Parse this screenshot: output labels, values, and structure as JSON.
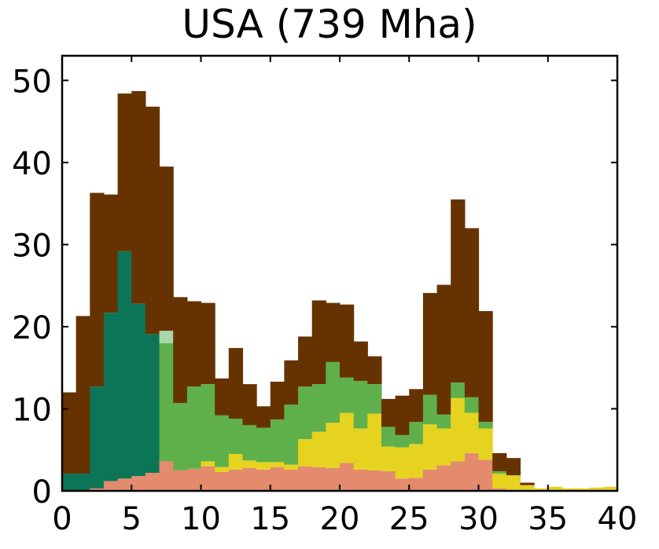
{
  "chart_data": {
    "type": "bar",
    "subtype": "stacked-step-histogram",
    "title": "USA (739 Mha)",
    "xlabel": "",
    "ylabel": "",
    "xlim": [
      0,
      40
    ],
    "ylim": [
      0,
      53
    ],
    "bin_width": 1,
    "x_ticks": [
      0,
      5,
      10,
      15,
      20,
      25,
      30,
      35,
      40
    ],
    "y_ticks": [
      0,
      10,
      20,
      30,
      40,
      50
    ],
    "grid": false,
    "legend": "none",
    "series": [
      {
        "color": "#e38b6c",
        "values": [
          0,
          0,
          0.3,
          1.2,
          1.5,
          1.8,
          2.2,
          3.6,
          2.5,
          2.7,
          3.0,
          2.3,
          2.6,
          2.8,
          2.6,
          2.9,
          2.6,
          3.0,
          2.9,
          2.8,
          3.4,
          2.6,
          2.5,
          2.4,
          1.5,
          1.6,
          2.6,
          3.1,
          3.6,
          4.6,
          3.8,
          0.3,
          0,
          0,
          0,
          0,
          0,
          0,
          0,
          0
        ]
      },
      {
        "color": "#e6d31f",
        "values": [
          0,
          0,
          0,
          0,
          0,
          0,
          0,
          0,
          0,
          0,
          0.6,
          0.6,
          1.9,
          0.9,
          0.9,
          0.6,
          0.6,
          3.3,
          4.3,
          5.5,
          6.1,
          5.0,
          6.9,
          3.0,
          3.8,
          4.1,
          5.5,
          4.5,
          7.7,
          4.9,
          3.8,
          1.8,
          1.9,
          0.7,
          0.3,
          0.5,
          0.3,
          0.3,
          0.4,
          0.5
        ]
      },
      {
        "color": "#5fb04a",
        "values": [
          0,
          0,
          0,
          0,
          0,
          0,
          0,
          14.4,
          8.2,
          10.0,
          9.4,
          6.3,
          4.3,
          4.3,
          4.2,
          5.2,
          7.3,
          6.4,
          5.8,
          7.4,
          4.3,
          5.8,
          3.6,
          2.4,
          1.5,
          2.7,
          3.6,
          1.7,
          1.9,
          1.9,
          0.8,
          0.3,
          0,
          0,
          0,
          0,
          0,
          0,
          0,
          0
        ]
      },
      {
        "color": "#0d7557",
        "values": [
          2.1,
          2.1,
          12.4,
          20.5,
          27.7,
          21.0,
          16.9,
          0,
          0,
          0,
          0,
          0,
          0,
          0,
          0,
          0,
          0,
          0,
          0,
          0,
          0,
          0,
          0,
          0,
          0,
          0,
          0,
          0,
          0,
          0,
          0,
          0,
          0,
          0,
          0,
          0,
          0,
          0,
          0,
          0
        ]
      },
      {
        "color": "#a7d7a7",
        "values": [
          0,
          0,
          0,
          0,
          0,
          0,
          0,
          1.5,
          0,
          0,
          0,
          0,
          0,
          0,
          0,
          0,
          0,
          0,
          0,
          0,
          0,
          0,
          0,
          0,
          0,
          0,
          0,
          0,
          0,
          0,
          0,
          0,
          0,
          0,
          0,
          0,
          0,
          0,
          0,
          0
        ]
      },
      {
        "color": "#663300",
        "values": [
          9.9,
          19.2,
          23.6,
          14.4,
          19.2,
          25.9,
          27.7,
          20.0,
          12.9,
          10.4,
          9.9,
          4.5,
          8.6,
          5.0,
          2.6,
          4.6,
          5.4,
          6.1,
          10.2,
          7.2,
          8.9,
          4.8,
          3.4,
          3.4,
          4.8,
          4.0,
          12.4,
          15.8,
          22.3,
          20.6,
          13.5,
          2.2,
          2.1,
          0.3,
          0,
          0,
          0,
          0,
          0,
          0
        ]
      }
    ]
  }
}
